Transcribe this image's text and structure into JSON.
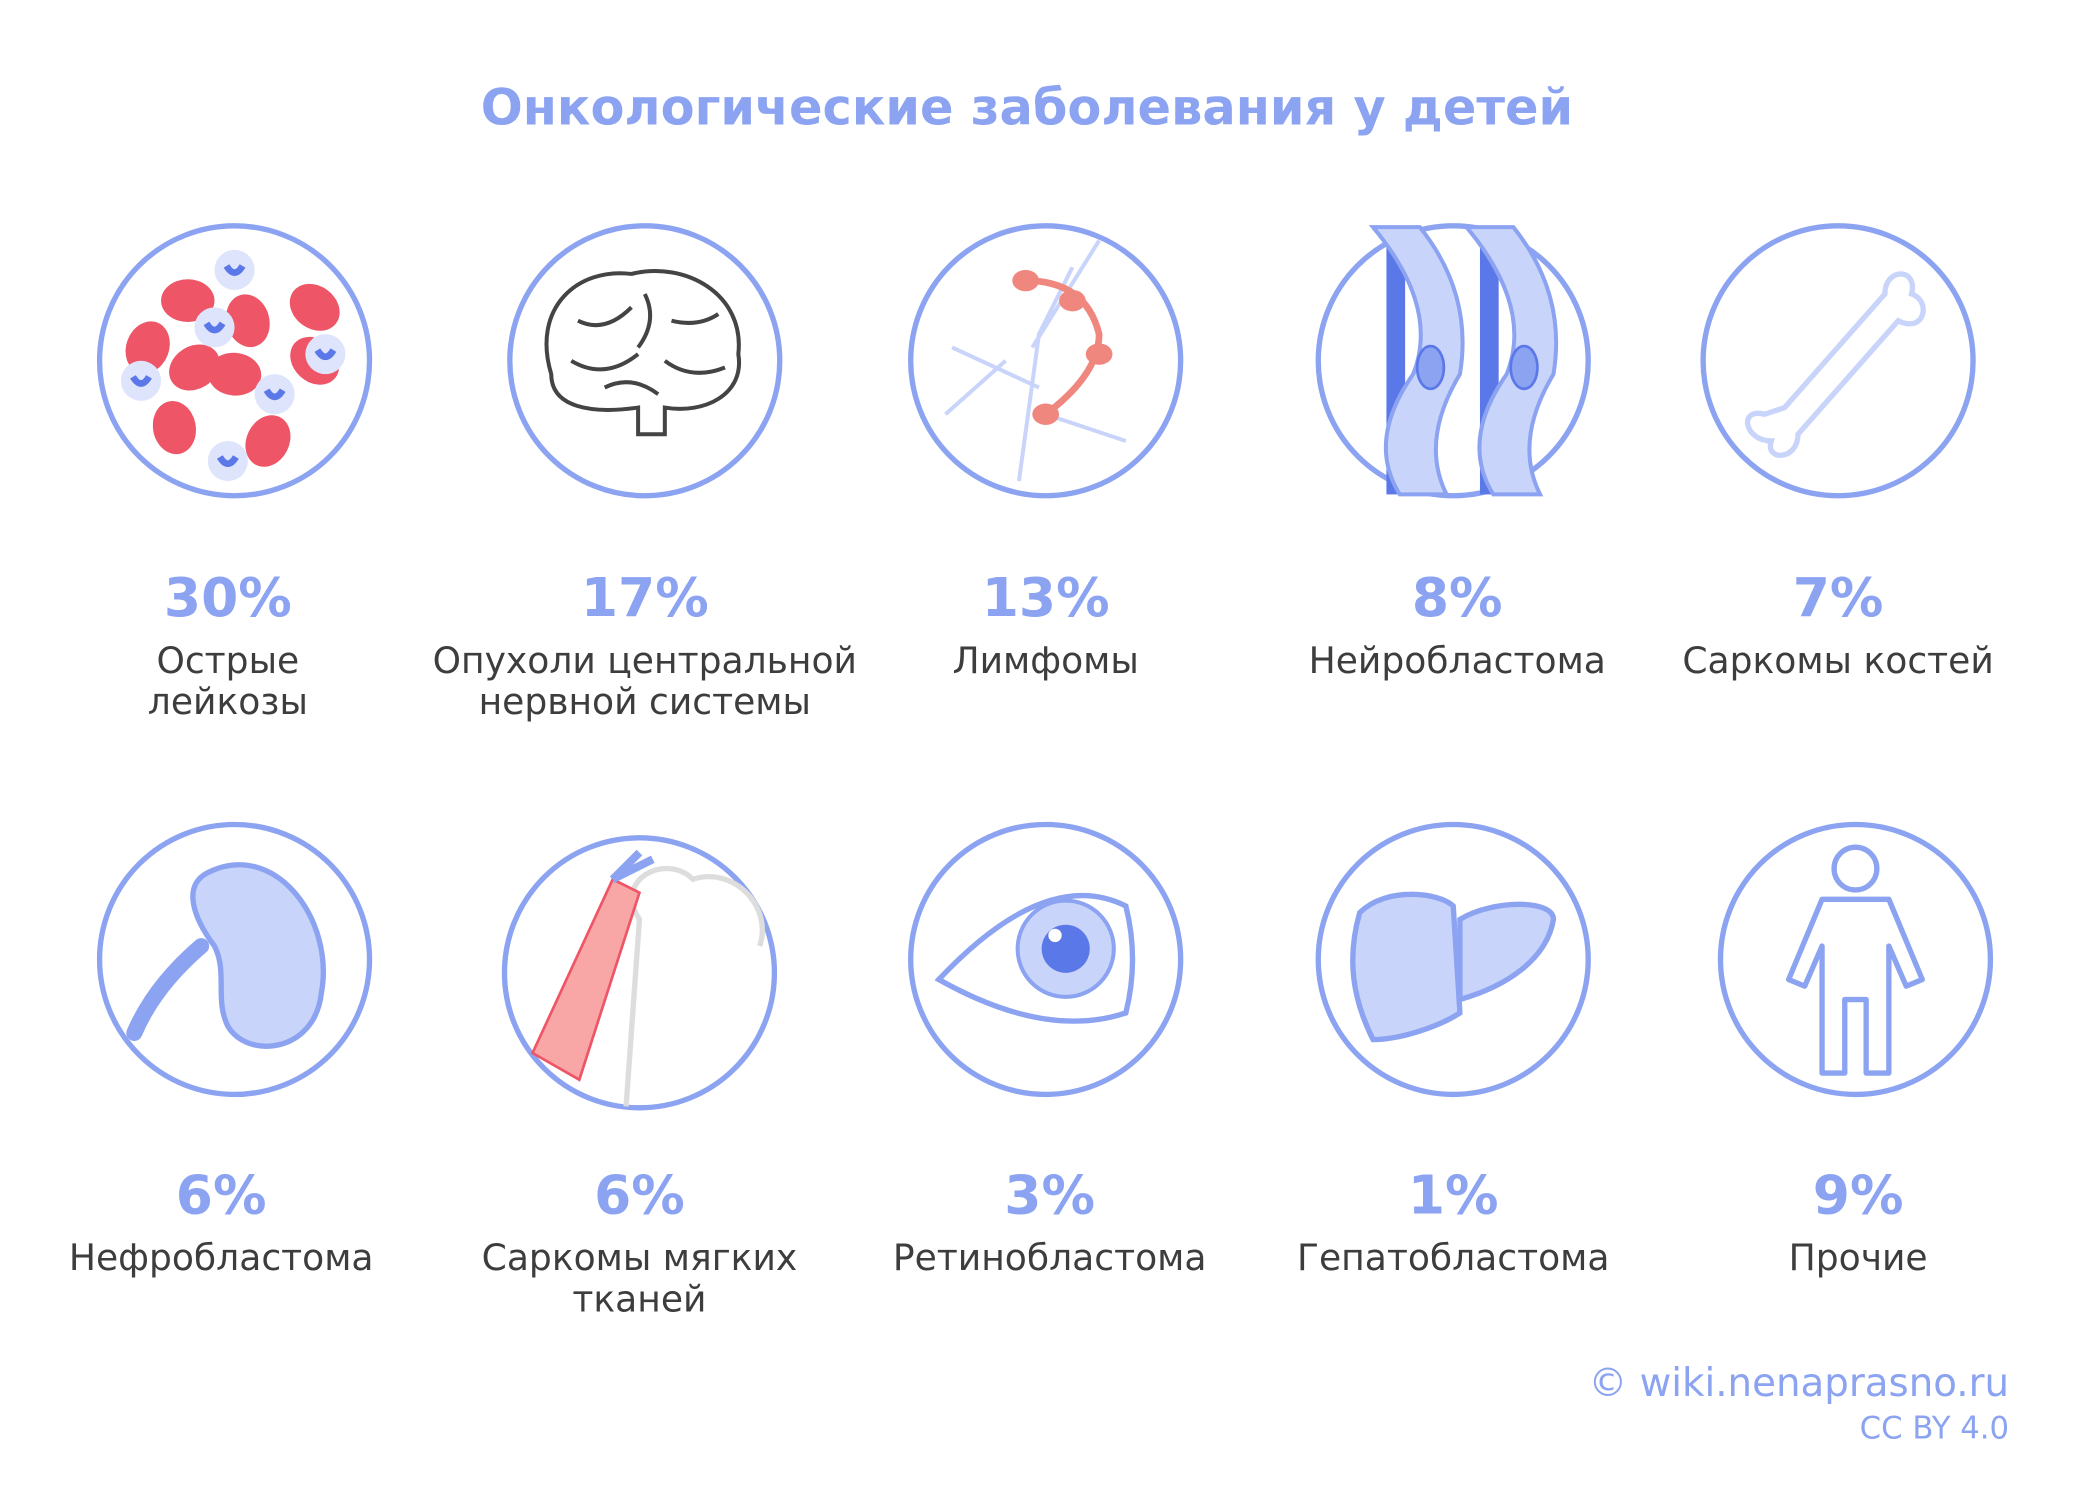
{
  "title": "Онкологические заболевания у детей",
  "items": [
    {
      "percent": "30%",
      "label": [
        "Острые",
        "лейкозы"
      ]
    },
    {
      "percent": "17%",
      "label": [
        "Опухоли центральной",
        "нервной системы"
      ]
    },
    {
      "percent": "13%",
      "label": [
        "Лимфомы"
      ]
    },
    {
      "percent": "8%",
      "label": [
        "Нейробластома"
      ]
    },
    {
      "percent": "7%",
      "label": [
        "Саркомы костей"
      ]
    },
    {
      "percent": "6%",
      "label": [
        "Нефробластома"
      ]
    },
    {
      "percent": "6%",
      "label": [
        "Саркомы мягких",
        "тканей"
      ]
    },
    {
      "percent": "3%",
      "label": [
        "Ретинобластома"
      ]
    },
    {
      "percent": "1%",
      "label": [
        "Гепатобластома"
      ]
    },
    {
      "percent": "9%",
      "label": [
        "Прочие"
      ]
    }
  ],
  "credit": {
    "source": "© wiki.nenaprasno.ru",
    "license": "CC BY 4.0"
  }
}
